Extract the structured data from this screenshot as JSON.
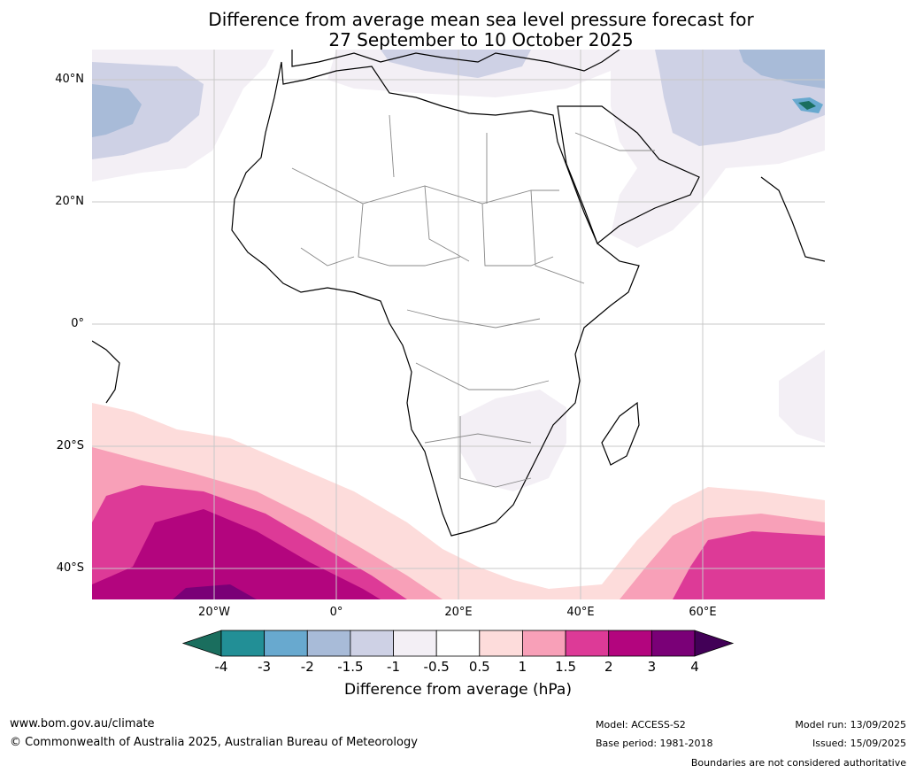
{
  "title": {
    "line1": "Difference from average mean sea level pressure forecast for",
    "line2": "27 September to 10 October 2025"
  },
  "axes": {
    "lat_labels": [
      "40°N",
      "20°N",
      "0°",
      "20°S",
      "40°S"
    ],
    "lon_labels": [
      "20°W",
      "0°",
      "20°E",
      "40°E",
      "60°E"
    ]
  },
  "colorbar": {
    "label": "Difference from average (hPa)",
    "ticks": [
      "-4",
      "-3",
      "-2",
      "-1.5",
      "-1",
      "-0.5",
      "0.5",
      "1",
      "1.5",
      "2",
      "3",
      "4"
    ],
    "colors": [
      "#1a6e5e",
      "#228f96",
      "#68a9cf",
      "#a8bbd8",
      "#ced1e5",
      "#f3eff5",
      "#ffffff",
      "#fddcdb",
      "#f8a0b8",
      "#dd3a97",
      "#b3057e",
      "#7a0077",
      "#420057"
    ]
  },
  "footer": {
    "website": "www.bom.gov.au/climate",
    "copyright": "© Commonwealth of Australia 2025, Australian Bureau of Meteorology",
    "model": "Model: ACCESS-S2",
    "base_period": "Base period: 1981-2018",
    "model_run": "Model run: 13/09/2025",
    "issued": "Issued: 15/09/2025",
    "disclaimer": "Boundaries are not considered authoritative"
  }
}
